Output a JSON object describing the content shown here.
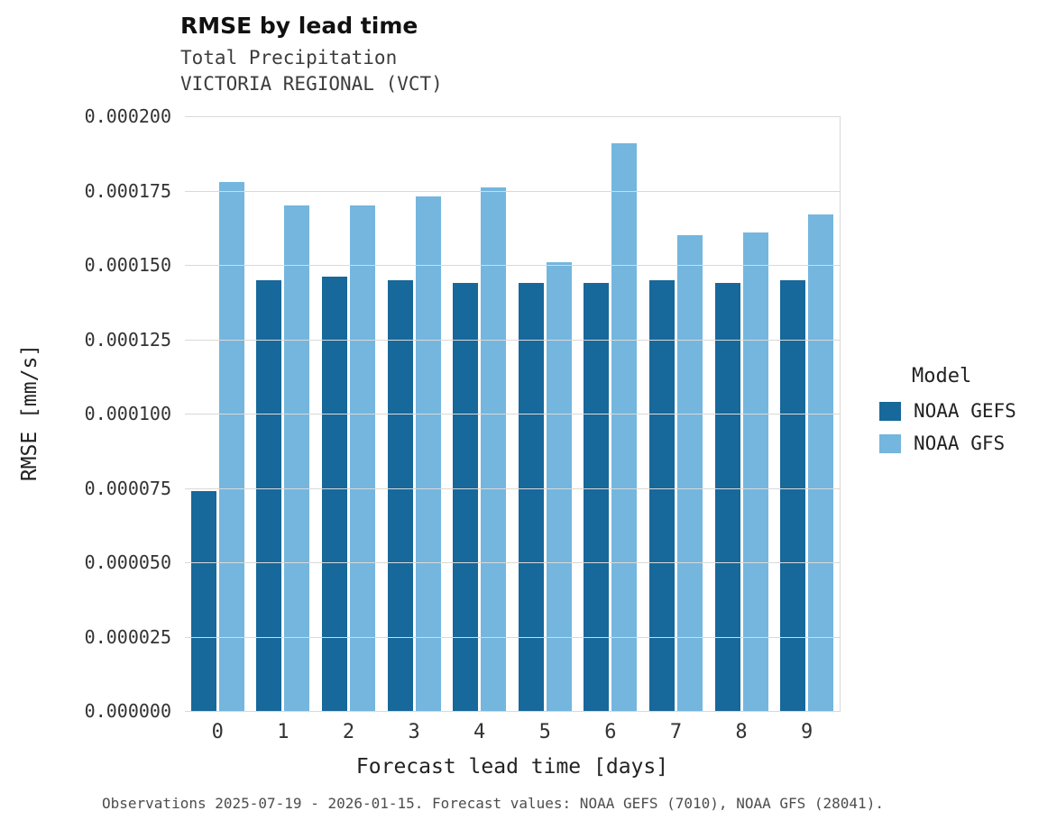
{
  "chart_data": {
    "type": "bar",
    "title": "RMSE by lead time",
    "subtitle_lines": [
      "Total Precipitation",
      "VICTORIA REGIONAL (VCT)"
    ],
    "xlabel": "Forecast lead time [days]",
    "ylabel": "RMSE [mm/s]",
    "categories": [
      "0",
      "1",
      "2",
      "3",
      "4",
      "5",
      "6",
      "7",
      "8",
      "9"
    ],
    "series": [
      {
        "name": "NOAA GEFS",
        "color": "#17689b",
        "values": [
          7.4e-05,
          0.000145,
          0.000146,
          0.000145,
          0.000144,
          0.000144,
          0.000144,
          0.000145,
          0.000144,
          0.000145
        ]
      },
      {
        "name": "NOAA GFS",
        "color": "#74b6de",
        "values": [
          0.000178,
          0.00017,
          0.00017,
          0.000173,
          0.000176,
          0.000151,
          0.000191,
          0.00016,
          0.000161,
          0.000167
        ]
      }
    ],
    "ylim": [
      0,
      0.0002
    ],
    "yticks": [
      "0.000000",
      "0.000025",
      "0.000050",
      "0.000075",
      "0.000100",
      "0.000125",
      "0.000150",
      "0.000175",
      "0.000200"
    ],
    "grid": "horizontal",
    "legend_title": "Model",
    "legend_position": "right",
    "caption": "Observations 2025-07-19 - 2026-01-15. Forecast values: NOAA GEFS (7010), NOAA GFS (28041)."
  },
  "colors": {
    "grid": "#d9d9d9"
  }
}
